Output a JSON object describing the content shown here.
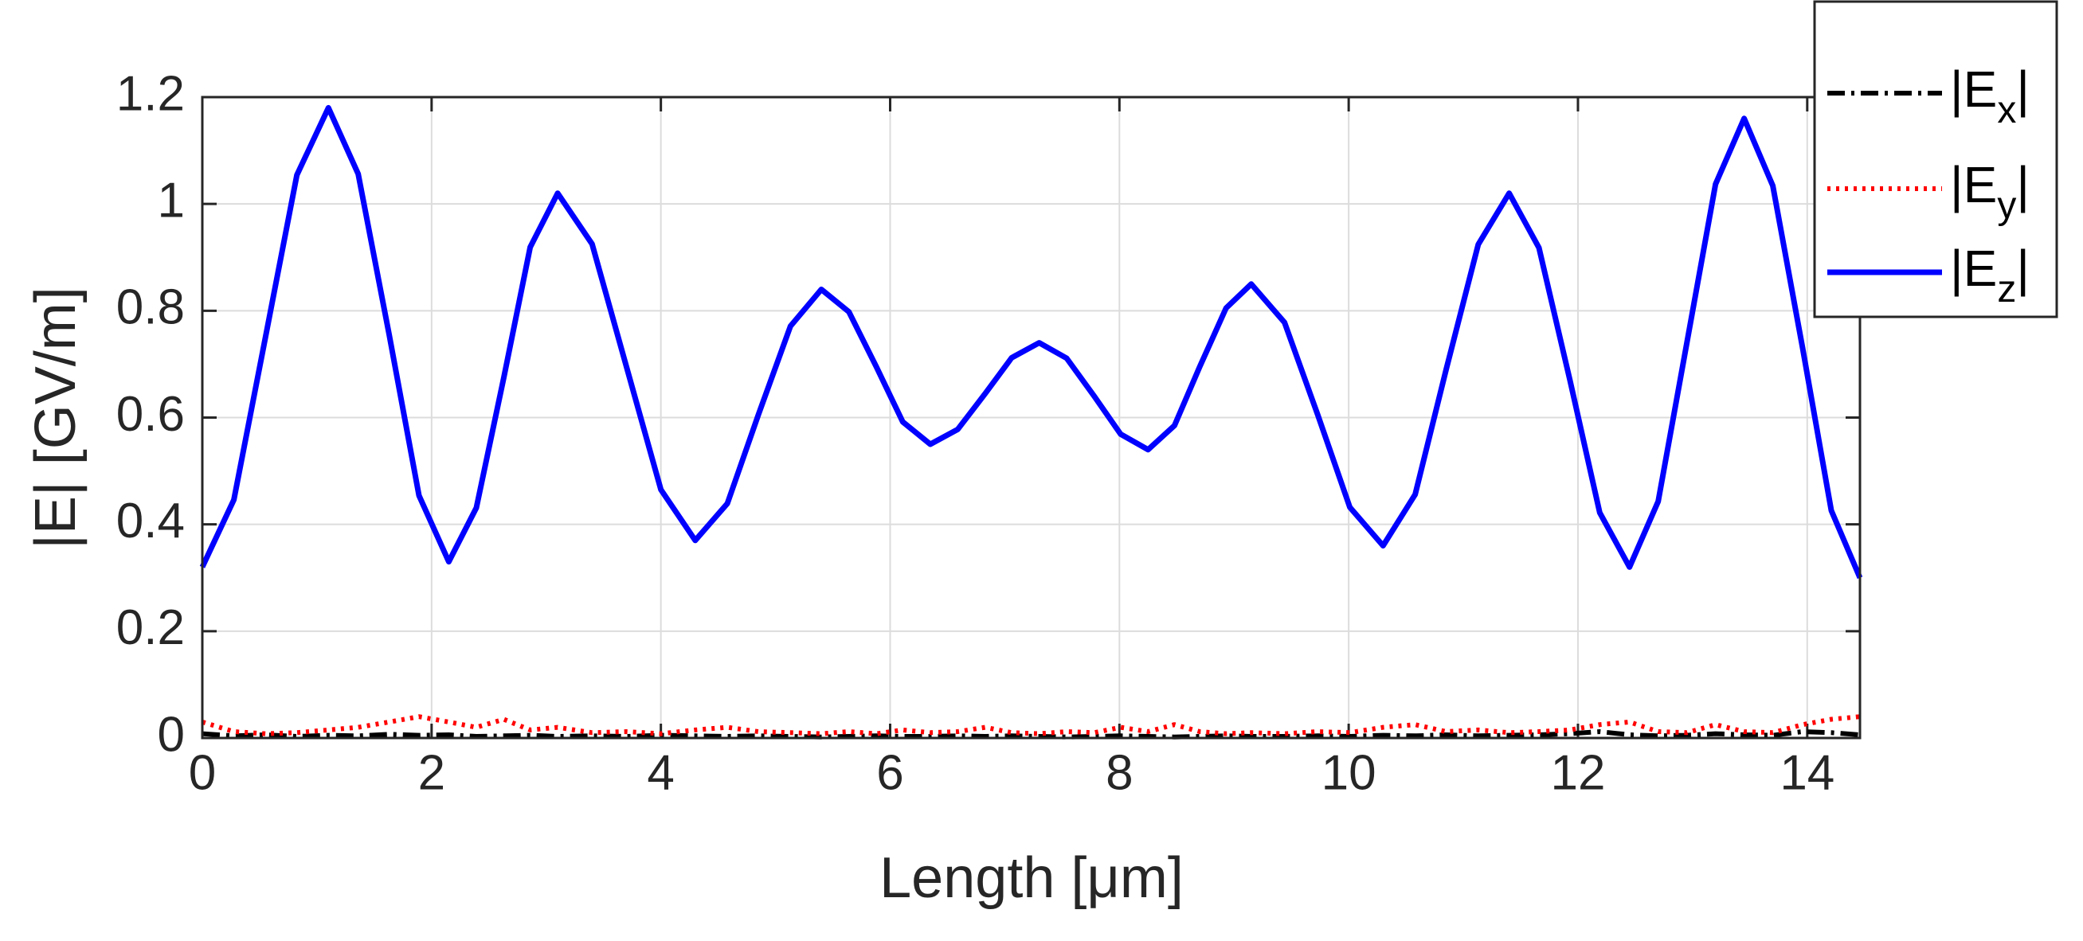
{
  "chart_data": {
    "type": "line",
    "xlabel": "Length [μm]",
    "ylabel": "|E| [GV/m]",
    "x": [
      0,
      0.275,
      0.55,
      0.825,
      1.1,
      1.36,
      1.63,
      1.89,
      2.15,
      2.39,
      2.63,
      2.86,
      3.1,
      3.4,
      3.7,
      4.0,
      4.3,
      4.58,
      4.85,
      5.13,
      5.4,
      5.64,
      5.88,
      6.11,
      6.35,
      6.59,
      6.83,
      7.06,
      7.3,
      7.54,
      7.78,
      8.01,
      8.25,
      8.48,
      8.7,
      8.93,
      9.15,
      9.44,
      9.73,
      10.01,
      10.3,
      10.58,
      10.85,
      11.13,
      11.4,
      11.66,
      11.93,
      12.19,
      12.45,
      12.7,
      12.95,
      13.2,
      13.45,
      13.7,
      13.96,
      14.21,
      14.46
    ],
    "series": [
      {
        "name": "|Ex|",
        "color": "#000000",
        "style": "dashdot",
        "values": [
          0.008,
          0.004,
          0.006,
          0.003,
          0.005,
          0.004,
          0.007,
          0.005,
          0.006,
          0.003,
          0.004,
          0.005,
          0.003,
          0.004,
          0.003,
          0.005,
          0.004,
          0.003,
          0.004,
          0.003,
          0.002,
          0.003,
          0.004,
          0.003,
          0.003,
          0.004,
          0.003,
          0.004,
          0.003,
          0.002,
          0.003,
          0.004,
          0.003,
          0.002,
          0.003,
          0.004,
          0.003,
          0.003,
          0.004,
          0.003,
          0.005,
          0.004,
          0.006,
          0.004,
          0.005,
          0.006,
          0.008,
          0.012,
          0.006,
          0.004,
          0.005,
          0.008,
          0.006,
          0.005,
          0.012,
          0.01,
          0.006
        ]
      },
      {
        "name": "|Ey|",
        "color": "#ff0000",
        "style": "dotted",
        "values": [
          0.03,
          0.012,
          0.008,
          0.01,
          0.015,
          0.02,
          0.03,
          0.04,
          0.03,
          0.02,
          0.035,
          0.015,
          0.02,
          0.01,
          0.012,
          0.008,
          0.015,
          0.02,
          0.012,
          0.01,
          0.008,
          0.012,
          0.008,
          0.015,
          0.01,
          0.012,
          0.02,
          0.01,
          0.008,
          0.012,
          0.01,
          0.02,
          0.012,
          0.025,
          0.012,
          0.008,
          0.01,
          0.008,
          0.012,
          0.01,
          0.02,
          0.025,
          0.012,
          0.015,
          0.01,
          0.012,
          0.015,
          0.025,
          0.03,
          0.012,
          0.01,
          0.025,
          0.012,
          0.01,
          0.025,
          0.035,
          0.04
        ]
      },
      {
        "name": "|Ez|",
        "color": "#0000ff",
        "style": "solid",
        "values": [
          0.32,
          0.446,
          0.75,
          1.054,
          1.18,
          1.056,
          0.755,
          0.454,
          0.33,
          0.431,
          0.675,
          0.919,
          1.02,
          0.925,
          0.695,
          0.465,
          0.37,
          0.439,
          0.605,
          0.771,
          0.84,
          0.798,
          0.695,
          0.592,
          0.55,
          0.578,
          0.645,
          0.712,
          0.74,
          0.711,
          0.64,
          0.569,
          0.54,
          0.585,
          0.695,
          0.805,
          0.85,
          0.778,
          0.605,
          0.432,
          0.36,
          0.456,
          0.69,
          0.924,
          1.02,
          0.918,
          0.67,
          0.422,
          0.32,
          0.443,
          0.74,
          1.037,
          1.16,
          1.034,
          0.73,
          0.426,
          0.3
        ]
      }
    ],
    "xlim": [
      0,
      14.46
    ],
    "ylim": [
      0,
      1.2
    ],
    "xticks": [
      0,
      2,
      4,
      6,
      8,
      10,
      12,
      14
    ],
    "yticks": [
      0,
      0.2,
      0.4,
      0.6,
      0.8,
      1,
      1.2
    ],
    "grid": true,
    "legend": "outside-upper-right"
  }
}
